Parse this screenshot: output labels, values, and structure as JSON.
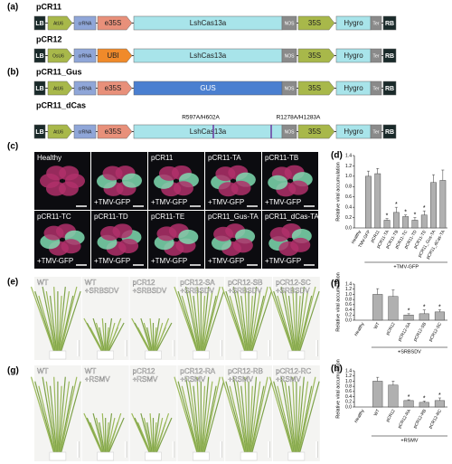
{
  "panel_labels": [
    "(a)",
    "(b)",
    "(c)",
    "(d)",
    "(e)",
    "(f)",
    "(g)",
    "(h)"
  ],
  "constructs": [
    {
      "name": "pCR11",
      "parts": [
        {
          "label": "LB",
          "color": "#1a2a2a"
        },
        {
          "label": "AtU6",
          "color": "#a8b84a"
        },
        {
          "label": "crRNA",
          "color": "#8fa6d8"
        },
        {
          "label": "e35S",
          "color": "#e8907a"
        },
        {
          "label": "LshCas13a",
          "color": "#a8e4ea"
        },
        {
          "label": "NOS",
          "color": "#8a8a8a"
        },
        {
          "label": "35S",
          "color": "#a8b84a"
        },
        {
          "label": "Hygro",
          "color": "#a8e4ea"
        },
        {
          "label": "Ter",
          "color": "#8a8a8a"
        },
        {
          "label": "RB",
          "color": "#1a2a2a"
        }
      ]
    },
    {
      "name": "pCR12",
      "parts": [
        {
          "label": "LB",
          "color": "#1a2a2a"
        },
        {
          "label": "OsU6",
          "color": "#a8b84a"
        },
        {
          "label": "crRNA",
          "color": "#8fa6d8"
        },
        {
          "label": "UBI",
          "color": "#f08a2a"
        },
        {
          "label": "LshCas13a",
          "color": "#a8e4ea"
        },
        {
          "label": "NOS",
          "color": "#8a8a8a"
        },
        {
          "label": "35S",
          "color": "#a8b84a"
        },
        {
          "label": "Hygro",
          "color": "#a8e4ea"
        },
        {
          "label": "Ter",
          "color": "#8a8a8a"
        },
        {
          "label": "RB",
          "color": "#1a2a2a"
        }
      ]
    },
    {
      "name": "pCR11_Gus",
      "parts": [
        {
          "label": "LB",
          "color": "#1a2a2a"
        },
        {
          "label": "AtU6",
          "color": "#a8b84a"
        },
        {
          "label": "crRNA",
          "color": "#8fa6d8"
        },
        {
          "label": "e35S",
          "color": "#e8907a"
        },
        {
          "label": "GUS",
          "color": "#4a7fd0"
        },
        {
          "label": "NOS",
          "color": "#8a8a8a"
        },
        {
          "label": "35S",
          "color": "#a8b84a"
        },
        {
          "label": "Hygro",
          "color": "#a8e4ea"
        },
        {
          "label": "Ter",
          "color": "#8a8a8a"
        },
        {
          "label": "RB",
          "color": "#1a2a2a"
        }
      ]
    },
    {
      "name": "pCR11_dCas",
      "mutations": [
        "R597A/H602A",
        "R1278A/H1283A"
      ],
      "parts": [
        {
          "label": "LB",
          "color": "#1a2a2a"
        },
        {
          "label": "AtU6",
          "color": "#a8b84a"
        },
        {
          "label": "crRNA",
          "color": "#8fa6d8"
        },
        {
          "label": "e35S",
          "color": "#e8907a"
        },
        {
          "label": "LshCas13a",
          "color": "#a8e4ea"
        },
        {
          "label": "NOS",
          "color": "#8a8a8a"
        },
        {
          "label": "35S",
          "color": "#a8b84a"
        },
        {
          "label": "Hygro",
          "color": "#a8e4ea"
        },
        {
          "label": "Ter",
          "color": "#8a8a8a"
        },
        {
          "label": "RB",
          "color": "#1a2a2a"
        }
      ]
    }
  ],
  "photos": [
    [
      {
        "top": "Healthy"
      },
      {
        "bottom": "+TMV-GFP"
      },
      {
        "top": "pCR11",
        "bottom": "+TMV-GFP"
      },
      {
        "top": "pCR11-TA",
        "bottom": "+TMV-GFP"
      },
      {
        "top": "pCR11-TB",
        "bottom": "+TMV-GFP"
      },
      {
        "top": "pCR11-TC",
        "bottom": "+TMV-GFP"
      },
      {
        "top": "pCR11-TD",
        "bottom": "+TMV-GFP"
      },
      {
        "top": "pCR11-TE",
        "bottom": "+TMV-GFP"
      },
      {
        "top": "pCR11_Gus-TA",
        "bottom": "+TMV-GFP"
      },
      {
        "top": "pCR11_dCas-TA",
        "bottom": "+TMV-GFP"
      }
    ],
    [
      {
        "top": "WT"
      },
      {
        "top": "WT",
        "bottom": "+SRBSDV"
      },
      {
        "top": "pCR12",
        "bottom": "+SRBSDV"
      },
      {
        "top": "pCR12-SA",
        "bottom": "+SRBSDV"
      },
      {
        "top": "pCR12-SB",
        "bottom": "+SRBSDV"
      },
      {
        "top": "pCR12-SC",
        "bottom": "+SRBSDV"
      }
    ],
    [
      {
        "top": "WT"
      },
      {
        "top": "WT",
        "bottom": "+RSMV"
      },
      {
        "top": "pCR12",
        "bottom": "+RSMV"
      },
      {
        "top": "pCR12-RA",
        "bottom": "+RSMV"
      },
      {
        "top": "pCR12-RB",
        "bottom": "+RSMV"
      },
      {
        "top": "pCR12-RC",
        "bottom": "+RSMV"
      }
    ]
  ],
  "chart_data": [
    {
      "type": "bar",
      "ylabel": "Relative viral accumulation",
      "group_label": "+TMV-GFP",
      "color": "#b0b0b0",
      "categories": [
        "Healthy",
        "TMV-GFP",
        "pCR11",
        "pCR11-TA",
        "pCR11-TB",
        "pCR11-TC",
        "pCR11-TD",
        "pCR11-TE",
        "pCR11_Gus-TA",
        "pCR11_dCas-TA"
      ],
      "values": [
        0,
        1.0,
        1.05,
        0.15,
        0.3,
        0.22,
        0.15,
        0.25,
        0.88,
        0.92
      ],
      "errors": [
        0,
        0.1,
        0.1,
        0.03,
        0.1,
        0.03,
        0.05,
        0.08,
        0.15,
        0.2
      ],
      "significance": [
        null,
        null,
        null,
        "*",
        "*",
        "*",
        "*",
        "*",
        null,
        null
      ],
      "ylim": [
        0,
        1.4
      ],
      "yticks": [
        {
          "value": 0,
          "label": "0.0"
        },
        0.2,
        0.4,
        0.6,
        0.8,
        {
          "value": 1,
          "label": "1.0"
        },
        1.2,
        1.4
      ]
    },
    {
      "type": "bar",
      "ylabel": "Relative viral accumulation",
      "group_label": "+SRBSDV",
      "color": "#b0b0b0",
      "categories": [
        "Healthy",
        "WT",
        "pCR12",
        "pCR12-SA",
        "pCR12-SB",
        "pCR12-SC"
      ],
      "values": [
        0,
        1.0,
        0.92,
        0.2,
        0.25,
        0.32
      ],
      "errors": [
        0,
        0.22,
        0.25,
        0.05,
        0.15,
        0.08
      ],
      "significance": [
        null,
        null,
        null,
        "*",
        "*",
        "*"
      ],
      "ylim": [
        0,
        1.4
      ],
      "yticks": [
        {
          "value": 0,
          "label": "0.0"
        },
        0.2,
        0.4,
        0.6,
        0.8,
        {
          "value": 1,
          "label": "1.0"
        },
        1.2,
        1.4
      ]
    },
    {
      "type": "bar",
      "ylabel": "Relative viral accumulation",
      "group_label": "+RSMV",
      "color": "#b0b0b0",
      "categories": [
        "Healthy",
        "WT",
        "pCR12",
        "pCR12-RA",
        "pCR12-RB",
        "pCR12-RC"
      ],
      "values": [
        0,
        1.0,
        0.85,
        0.25,
        0.18,
        0.25
      ],
      "errors": [
        0,
        0.15,
        0.15,
        0.03,
        0.05,
        0.1
      ],
      "significance": [
        null,
        null,
        null,
        "*",
        "*",
        "*"
      ],
      "ylim": [
        0,
        1.4
      ],
      "yticks": [
        {
          "value": 0,
          "label": "0.0"
        },
        0.2,
        0.4,
        0.6,
        0.8,
        {
          "value": 1,
          "label": "1.0"
        },
        1.2,
        1.4
      ]
    }
  ]
}
